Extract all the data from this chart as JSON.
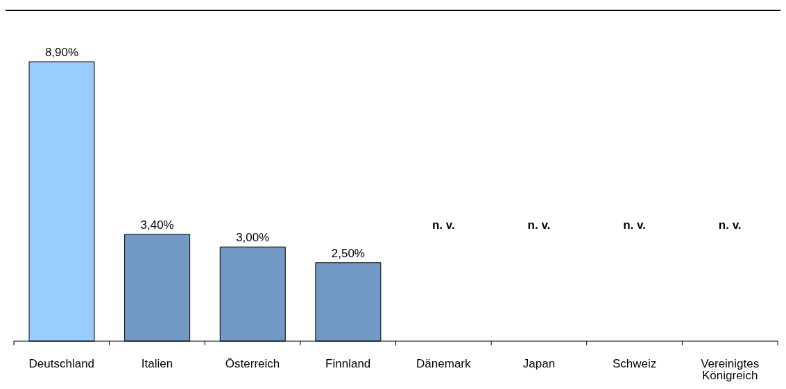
{
  "chart_data": {
    "type": "bar",
    "categories": [
      "Deutschland",
      "Italien",
      "Österreich",
      "Finnland",
      "Dänemark",
      "Japan",
      "Schweiz",
      "Vereinigtes Königreich"
    ],
    "values": [
      8.9,
      3.4,
      3.0,
      2.5,
      null,
      null,
      null,
      null
    ],
    "colors": [
      "#99ccff",
      "#7399c6",
      "#7399c6",
      "#7399c6",
      "#7399c6",
      "#7399c6",
      "#7399c6",
      "#7399c6"
    ],
    "value_labels": [
      "8,90%",
      "3,40%",
      "3,00%",
      "2,50%",
      "n. v.",
      "n. v.",
      "n. v.",
      "n. v."
    ]
  }
}
